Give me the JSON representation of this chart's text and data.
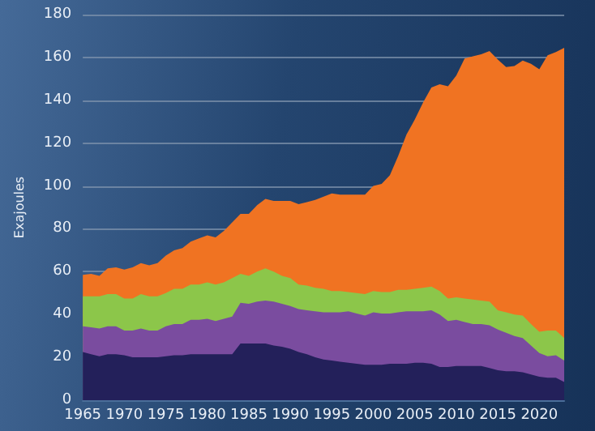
{
  "chart_data": {
    "type": "area",
    "stacked": true,
    "ylabel": "Exajoules",
    "x": [
      1965,
      1966,
      1967,
      1968,
      1969,
      1970,
      1971,
      1972,
      1973,
      1974,
      1975,
      1976,
      1977,
      1978,
      1979,
      1980,
      1981,
      1982,
      1983,
      1984,
      1985,
      1986,
      1987,
      1988,
      1989,
      1990,
      1991,
      1992,
      1993,
      1994,
      1995,
      1996,
      1997,
      1998,
      1999,
      2000,
      2001,
      2002,
      2003,
      2004,
      2005,
      2006,
      2007,
      2008,
      2009,
      2010,
      2011,
      2012,
      2013,
      2014,
      2015,
      2016,
      2017,
      2018,
      2019,
      2020,
      2021,
      2022,
      2023
    ],
    "xlim": [
      1965,
      2023
    ],
    "xticks": [
      1965,
      1970,
      1975,
      1980,
      1985,
      1990,
      1995,
      2000,
      2005,
      2010,
      2015,
      2020
    ],
    "ylim": [
      0,
      180
    ],
    "yticks": [
      0,
      20,
      40,
      60,
      80,
      100,
      120,
      140,
      160,
      180
    ],
    "grid": "y",
    "series": [
      {
        "color": "#23205a",
        "values": [
          22.5,
          21.5,
          20.5,
          21.5,
          21.5,
          21,
          20,
          20,
          20,
          20,
          20.5,
          21,
          21,
          21.5,
          21.5,
          21.5,
          21.5,
          21.5,
          21.5,
          26.5,
          26.5,
          26.5,
          26.5,
          25.5,
          25,
          24,
          22.5,
          21.5,
          20,
          19,
          18.5,
          18,
          17.5,
          17,
          16.5,
          16.5,
          16.5,
          17,
          17,
          17,
          17.5,
          17.5,
          17,
          15.5,
          15.5,
          16,
          16,
          16,
          16,
          15,
          14,
          13.5,
          13.5,
          13,
          12,
          11,
          10.5,
          10.5,
          8.5
        ]
      },
      {
        "color": "#7a4c9f",
        "values": [
          12,
          12.5,
          13,
          13,
          13,
          11.5,
          12.5,
          13.5,
          12.5,
          12.5,
          14,
          14.5,
          14.5,
          16,
          16,
          16.5,
          15.5,
          16.5,
          17.5,
          19,
          18.5,
          19.5,
          20,
          20.5,
          20,
          20,
          20,
          20.5,
          21.5,
          22,
          22.5,
          23,
          24,
          23.5,
          23,
          24.5,
          24,
          23.5,
          24,
          24.5,
          24,
          24,
          25,
          24.5,
          21.5,
          21.5,
          20.5,
          19.5,
          19.5,
          20,
          19,
          18,
          16.5,
          16,
          13.5,
          11,
          10,
          10.5,
          10
        ]
      },
      {
        "color": "#8cc64a",
        "values": [
          14,
          14.5,
          15,
          15,
          15,
          15,
          15,
          16,
          16,
          16,
          15.5,
          16.5,
          16.5,
          16.5,
          16.5,
          17,
          17,
          17,
          18,
          13.5,
          13,
          14,
          15,
          14,
          13,
          13,
          11.5,
          11.5,
          11,
          11,
          10,
          10,
          9,
          9.5,
          10,
          10,
          10,
          10,
          10.5,
          10,
          10.5,
          11,
          11,
          11,
          10.5,
          10.5,
          11,
          11.5,
          11,
          11,
          9,
          9.5,
          10,
          10.5,
          10,
          10,
          12,
          11.5,
          10.5
        ]
      },
      {
        "color": "#f07322",
        "values": [
          10,
          10.5,
          9.5,
          12,
          12.5,
          13.5,
          14.5,
          14.5,
          14.5,
          15.5,
          17.5,
          18,
          19,
          20,
          21.5,
          22,
          22,
          24,
          26,
          28,
          29,
          31,
          32.5,
          33,
          35,
          36,
          37.5,
          39,
          41,
          43,
          45.5,
          45,
          45.5,
          46,
          46.5,
          49,
          50.5,
          54.5,
          62.5,
          72.5,
          79,
          86.5,
          93,
          96.5,
          99,
          103.5,
          112,
          113.5,
          115,
          117,
          117,
          114.5,
          116,
          119,
          121.5,
          122.5,
          128.5,
          130,
          135.5
        ]
      }
    ]
  }
}
